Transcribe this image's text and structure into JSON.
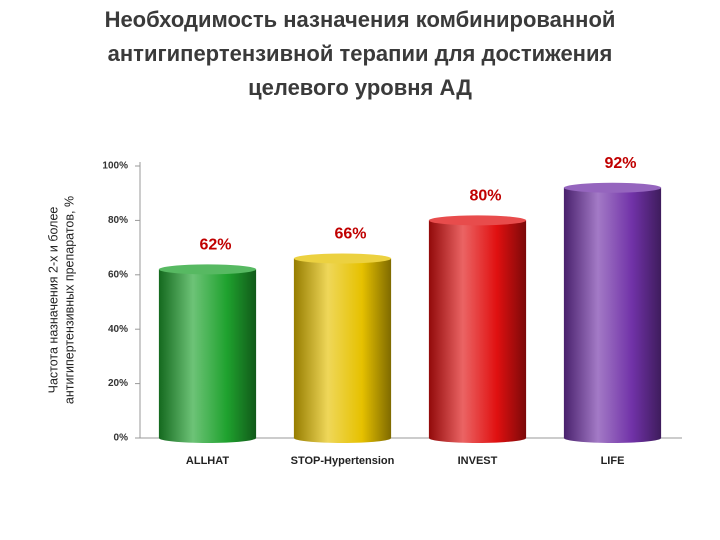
{
  "chart_data": {
    "type": "bar",
    "title": [
      "Необходимость назначения комбинированной",
      "антигипертензивной терапии для достижения",
      "целевого уровня АД"
    ],
    "y_label": [
      "Частота  назначения 2-х и более",
      "антигипертензивных препаратов, %"
    ],
    "categories": [
      "ALLHAT",
      "STOP-Hypertension",
      "INVEST",
      "LIFE"
    ],
    "values": [
      62,
      66,
      80,
      92
    ],
    "value_labels": [
      "62%",
      "66%",
      "80%",
      "92%"
    ],
    "colors": [
      "#1fa22e",
      "#e6c100",
      "#e01010",
      "#7132a8"
    ],
    "ylim": [
      0,
      100
    ],
    "yticks": [
      {
        "value": 0,
        "label": "0%"
      },
      {
        "value": 20,
        "label": "20%"
      },
      {
        "value": 40,
        "label": "40%"
      },
      {
        "value": 60,
        "label": "60%"
      },
      {
        "value": 80,
        "label": "80%"
      },
      {
        "value": 100,
        "label": "100%"
      }
    ],
    "grid": false
  }
}
